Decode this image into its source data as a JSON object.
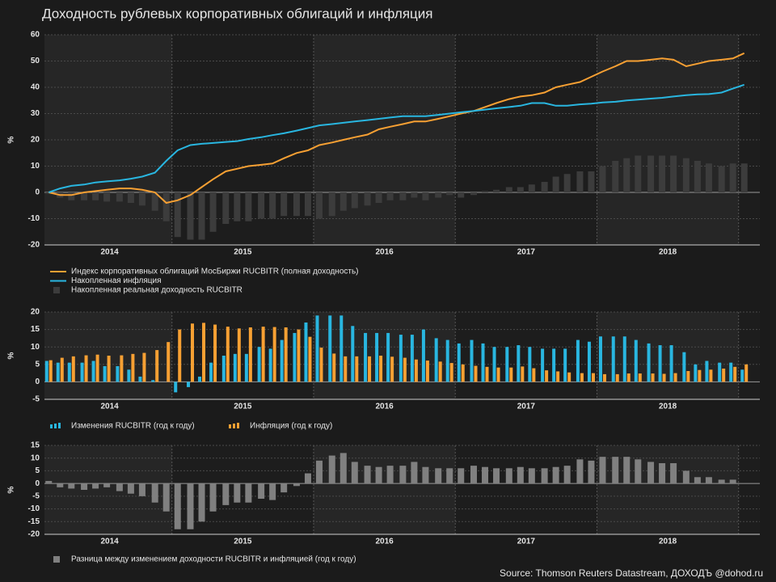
{
  "title": "Доходность рублевых корпоративных облигаций и инфляция",
  "source": "Source: Thomson Reuters Datastream, ДОХОДЪ @dohod.ru",
  "chart_data": [
    {
      "type": "combo",
      "ylabel": "%",
      "ylim": [
        -20,
        60
      ],
      "yticks": [
        -20,
        -10,
        0,
        10,
        20,
        30,
        40,
        50,
        60
      ],
      "grid": true,
      "xlim": [
        2014.1,
        2019.15
      ],
      "xticks": [
        {
          "value": 2014.56,
          "label": "2014"
        },
        {
          "value": 2015.5,
          "label": "2015"
        },
        {
          "value": 2016.5,
          "label": "2016"
        },
        {
          "value": 2017.5,
          "label": "2017"
        },
        {
          "value": 2018.5,
          "label": "2018"
        }
      ],
      "xgrid": [
        2015,
        2016,
        2017,
        2018,
        2019
      ],
      "x": [
        2014.13,
        2014.21,
        2014.29,
        2014.38,
        2014.46,
        2014.54,
        2014.63,
        2014.71,
        2014.79,
        2014.88,
        2014.96,
        2015.04,
        2015.13,
        2015.21,
        2015.29,
        2015.38,
        2015.46,
        2015.54,
        2015.63,
        2015.71,
        2015.79,
        2015.88,
        2015.96,
        2016.04,
        2016.13,
        2016.21,
        2016.29,
        2016.38,
        2016.46,
        2016.54,
        2016.63,
        2016.71,
        2016.79,
        2016.88,
        2016.96,
        2017.04,
        2017.13,
        2017.21,
        2017.29,
        2017.38,
        2017.46,
        2017.54,
        2017.63,
        2017.71,
        2017.79,
        2017.88,
        2017.96,
        2018.04,
        2018.13,
        2018.21,
        2018.29,
        2018.38,
        2018.46,
        2018.54,
        2018.63,
        2018.71,
        2018.79,
        2018.88,
        2018.96,
        2019.04
      ],
      "series": [
        {
          "name": "Накопленная реальная доходность RUCBITR",
          "type": "bar",
          "color": "#3c3c3c",
          "values": [
            -0.5,
            -2,
            -3,
            -3,
            -3,
            -3.5,
            -3.5,
            -4,
            -5,
            -7,
            -11,
            -17,
            -18,
            -18,
            -15,
            -12,
            -11,
            -11,
            -10,
            -10,
            -9,
            -9,
            -9,
            -10,
            -9,
            -7,
            -6,
            -5,
            -4,
            -3,
            -3,
            -2,
            -3,
            -2,
            -1,
            -2,
            -1,
            0.5,
            1,
            2,
            2,
            3,
            4,
            6,
            7,
            8,
            8,
            10,
            12,
            13,
            14,
            14,
            14,
            14,
            13,
            12,
            11,
            10,
            11,
            11
          ]
        },
        {
          "name": "Индекс корпоративных облигаций МосБиржи RUCBITR (полная доходность)",
          "type": "line",
          "color": "#f7a033",
          "values": [
            0,
            -1,
            -1,
            0,
            0.5,
            1,
            1.5,
            1.5,
            1,
            0,
            -4,
            -3,
            -1,
            2,
            5,
            8,
            9,
            10,
            10.5,
            11,
            13,
            15,
            16,
            18,
            19,
            20,
            21,
            22,
            24,
            25,
            26,
            27,
            27,
            28,
            29,
            30,
            31,
            32.5,
            34,
            35.5,
            36.5,
            37,
            38,
            40,
            41,
            42,
            44,
            46,
            48,
            50,
            50,
            50.5,
            51,
            50.5,
            48,
            49,
            50,
            50.5,
            51,
            53
          ]
        },
        {
          "name": "Накопленная инфляция",
          "type": "line",
          "color": "#29b6e0",
          "values": [
            0,
            1.5,
            2.5,
            3,
            3.8,
            4.2,
            4.6,
            5.2,
            6,
            7.5,
            12,
            16,
            18,
            18.5,
            18.8,
            19.2,
            19.5,
            20.3,
            21,
            21.8,
            22.5,
            23.5,
            24.5,
            25.5,
            26,
            26.5,
            27,
            27.5,
            28,
            28.5,
            29,
            29,
            29,
            29.5,
            30,
            30.5,
            31,
            31.5,
            32,
            32.5,
            33,
            34,
            34,
            33,
            33,
            33.5,
            33.8,
            34.2,
            34.5,
            35,
            35.3,
            35.7,
            36,
            36.5,
            37,
            37.3,
            37.4,
            38,
            39.5,
            41
          ]
        }
      ]
    },
    {
      "type": "bar",
      "ylabel": "%",
      "ylim": [
        -5,
        20
      ],
      "yticks": [
        -5,
        0,
        5,
        10,
        15,
        20
      ],
      "grid": true,
      "xlim": [
        2014.1,
        2019.15
      ],
      "xticks": [
        {
          "value": 2014.56,
          "label": "2014"
        },
        {
          "value": 2015.5,
          "label": "2015"
        },
        {
          "value": 2016.5,
          "label": "2016"
        },
        {
          "value": 2017.5,
          "label": "2017"
        },
        {
          "value": 2018.5,
          "label": "2018"
        }
      ],
      "xgrid": [
        2015,
        2016,
        2017,
        2018,
        2019
      ],
      "x": [
        2014.13,
        2014.21,
        2014.29,
        2014.38,
        2014.46,
        2014.54,
        2014.63,
        2014.71,
        2014.79,
        2014.88,
        2014.96,
        2015.04,
        2015.13,
        2015.21,
        2015.29,
        2015.38,
        2015.46,
        2015.54,
        2015.63,
        2015.71,
        2015.79,
        2015.88,
        2015.96,
        2016.04,
        2016.13,
        2016.21,
        2016.29,
        2016.38,
        2016.46,
        2016.54,
        2016.63,
        2016.71,
        2016.79,
        2016.88,
        2016.96,
        2017.04,
        2017.13,
        2017.21,
        2017.29,
        2017.38,
        2017.46,
        2017.54,
        2017.63,
        2017.71,
        2017.79,
        2017.88,
        2017.96,
        2018.04,
        2018.13,
        2018.21,
        2018.29,
        2018.38,
        2018.46,
        2018.54,
        2018.63,
        2018.71,
        2018.79,
        2018.88,
        2018.96,
        2019.04
      ],
      "series": [
        {
          "name": "Изменения RUCBITR (год к году)",
          "type": "bar",
          "color": "#29b6e0",
          "values": [
            6,
            5.5,
            5.5,
            5.5,
            6,
            4.5,
            4.5,
            3.5,
            1.5,
            0.5,
            0,
            -3,
            -1.5,
            1.5,
            5.5,
            7.5,
            8,
            8,
            10,
            9.5,
            12,
            14,
            17,
            19,
            19,
            19,
            16,
            14,
            14,
            14,
            13.5,
            13.5,
            15,
            12.5,
            12,
            11,
            12,
            11,
            10,
            10,
            10.5,
            10,
            9.5,
            9.5,
            9.5,
            12,
            11.5,
            13,
            13,
            13,
            12,
            11,
            10.5,
            10.5,
            8.5,
            5,
            6,
            5.5,
            5.5,
            3.5
          ]
        },
        {
          "name": "Инфляция (год к году)",
          "type": "bar",
          "color": "#f7a033",
          "values": [
            6.2,
            6.9,
            7.3,
            7.6,
            7.8,
            7.5,
            7.6,
            8.0,
            8.3,
            9.1,
            11.4,
            15.0,
            16.7,
            16.9,
            16.4,
            15.8,
            15.3,
            15.6,
            15.8,
            15.7,
            15.6,
            15.0,
            12.9,
            9.8,
            8.1,
            7.3,
            7.3,
            7.3,
            7.5,
            7.2,
            6.9,
            6.4,
            6.1,
            5.8,
            5.4,
            5.0,
            4.6,
            4.3,
            4.1,
            4.1,
            4.4,
            3.9,
            3.3,
            3.0,
            2.7,
            2.5,
            2.5,
            2.2,
            2.2,
            2.4,
            2.4,
            2.4,
            2.3,
            2.5,
            3.1,
            3.4,
            3.5,
            3.8,
            4.3,
            5.0
          ]
        }
      ]
    },
    {
      "type": "bar",
      "ylabel": "%",
      "ylim": [
        -20,
        15
      ],
      "yticks": [
        -20,
        -15,
        -10,
        -5,
        0,
        5,
        10,
        15
      ],
      "grid": true,
      "xlim": [
        2014.1,
        2019.15
      ],
      "xticks": [
        {
          "value": 2014.56,
          "label": "2014"
        },
        {
          "value": 2015.5,
          "label": "2015"
        },
        {
          "value": 2016.5,
          "label": "2016"
        },
        {
          "value": 2017.5,
          "label": "2017"
        },
        {
          "value": 2018.5,
          "label": "2018"
        }
      ],
      "xgrid": [
        2015,
        2016,
        2017,
        2018,
        2019
      ],
      "x": [
        2014.13,
        2014.21,
        2014.29,
        2014.38,
        2014.46,
        2014.54,
        2014.63,
        2014.71,
        2014.79,
        2014.88,
        2014.96,
        2015.04,
        2015.13,
        2015.21,
        2015.29,
        2015.38,
        2015.46,
        2015.54,
        2015.63,
        2015.71,
        2015.79,
        2015.88,
        2015.96,
        2016.04,
        2016.13,
        2016.21,
        2016.29,
        2016.38,
        2016.46,
        2016.54,
        2016.63,
        2016.71,
        2016.79,
        2016.88,
        2016.96,
        2017.04,
        2017.13,
        2017.21,
        2017.29,
        2017.38,
        2017.46,
        2017.54,
        2017.63,
        2017.71,
        2017.79,
        2017.88,
        2017.96,
        2018.04,
        2018.13,
        2018.21,
        2018.29,
        2018.38,
        2018.46,
        2018.54,
        2018.63,
        2018.71,
        2018.79,
        2018.88,
        2018.96,
        2019.04
      ],
      "series": [
        {
          "name": "Разница между изменением доходности RUCBITR и инфляцией (год к году)",
          "type": "bar",
          "color": "#808080",
          "values": [
            1,
            -1.5,
            -2,
            -2.5,
            -2,
            -1.5,
            -3,
            -4,
            -5,
            -7.5,
            -11,
            -18,
            -18,
            -15,
            -11,
            -8.5,
            -7.5,
            -7.5,
            -6,
            -6.5,
            -3.5,
            -1,
            4,
            9,
            11,
            12,
            8.5,
            7,
            6.5,
            7,
            7,
            8.5,
            6.5,
            6,
            6,
            6,
            7,
            6.5,
            6,
            6,
            6.5,
            6,
            6,
            6.5,
            7,
            9.5,
            9,
            10.5,
            10.5,
            10.5,
            9.5,
            8.5,
            8,
            8,
            5,
            2.5,
            2.5,
            1.5,
            1.5,
            null
          ]
        }
      ]
    }
  ]
}
